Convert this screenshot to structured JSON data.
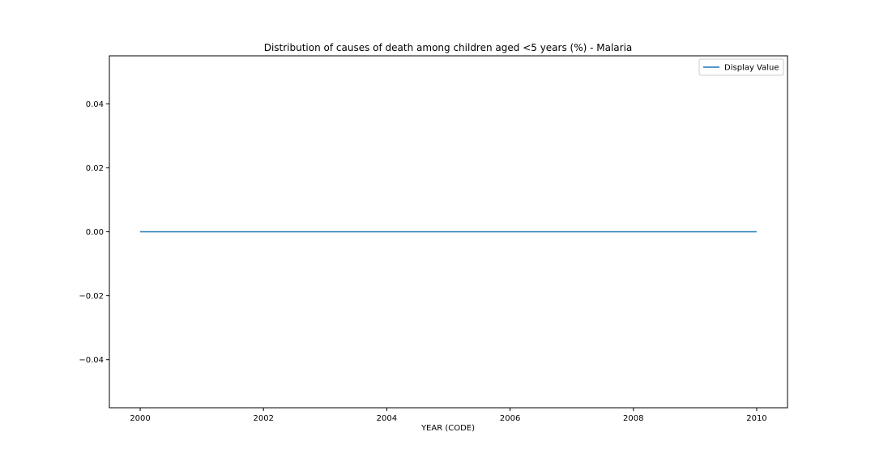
{
  "chart_data": {
    "type": "line",
    "title": "Distribution of causes of death among children aged <5 years (%) - Malaria",
    "xlabel": "YEAR (CODE)",
    "ylabel": "",
    "xlim": [
      1999.5,
      2010.5
    ],
    "ylim": [
      -0.055,
      0.055
    ],
    "x_ticks": [
      2000,
      2002,
      2004,
      2006,
      2008,
      2010
    ],
    "x_tick_labels": [
      "2000",
      "2002",
      "2004",
      "2006",
      "2008",
      "2010"
    ],
    "y_ticks": [
      -0.04,
      -0.02,
      0.0,
      0.02,
      0.04
    ],
    "y_tick_labels": [
      "−0.04",
      "−0.02",
      "0.00",
      "0.02",
      "0.04"
    ],
    "grid": false,
    "legend_position": "top-right",
    "series": [
      {
        "name": "Display Value",
        "color": "#1f77b4",
        "x": [
          2000,
          2001,
          2002,
          2003,
          2004,
          2005,
          2006,
          2007,
          2008,
          2009,
          2010
        ],
        "y": [
          0,
          0,
          0,
          0,
          0,
          0,
          0,
          0,
          0,
          0,
          0
        ]
      }
    ]
  }
}
